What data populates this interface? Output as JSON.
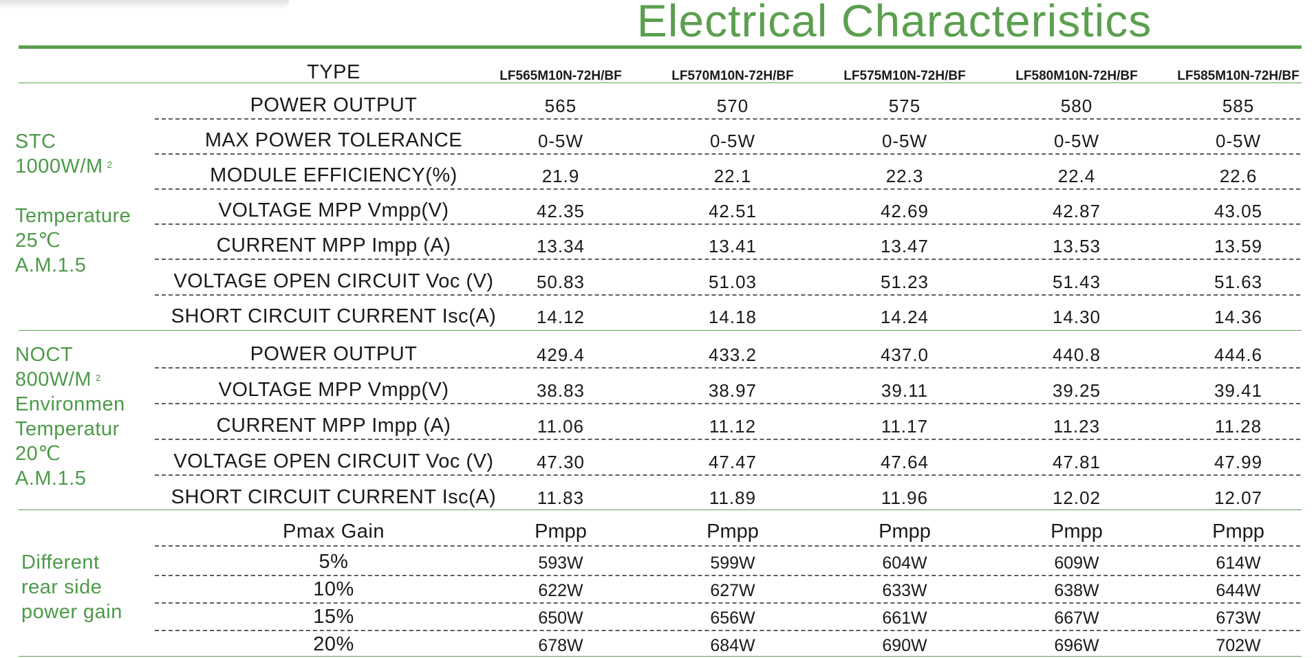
{
  "title": "Electrical Characteristics",
  "header": {
    "label": "TYPE",
    "models": [
      "LF565M10N-72H/BF",
      "LF570M10N-72H/BF",
      "LF575M10N-72H/BF",
      "LF580M10N-72H/BF",
      "LF585M10N-72H/BF"
    ]
  },
  "stc": {
    "side_lines": [
      "STC",
      "1000W/M",
      "Temperature",
      "25℃",
      "A.M.1.5"
    ],
    "sup": "2",
    "rows": [
      {
        "label": "POWER OUTPUT",
        "values": [
          "565",
          "570",
          "575",
          "580",
          "585"
        ]
      },
      {
        "label": "MAX POWER  TOLERANCE",
        "values": [
          "0-5W",
          "0-5W",
          "0-5W",
          "0-5W",
          "0-5W"
        ]
      },
      {
        "label": "MODULE EFFICIENCY(%)",
        "values": [
          "21.9",
          "22.1",
          "22.3",
          "22.4",
          "22.6"
        ]
      },
      {
        "label": "VOLTAGE MPP Vmpp(V)",
        "values": [
          "42.35",
          "42.51",
          "42.69",
          "42.87",
          "43.05"
        ]
      },
      {
        "label": "CURRENT MPP Impp (A)",
        "values": [
          "13.34",
          "13.41",
          "13.47",
          "13.53",
          "13.59"
        ]
      },
      {
        "label": "VOLTAGE OPEN CIRCUIT Voc (V)",
        "values": [
          "50.83",
          "51.03",
          "51.23",
          "51.43",
          "51.63"
        ]
      },
      {
        "label": "SHORT CIRCUIT CURRENT Isc(A)",
        "values": [
          "14.12",
          "14.18",
          "14.24",
          "14.30",
          "14.36"
        ]
      }
    ]
  },
  "noct": {
    "side_lines": [
      "NOCT",
      "800W/M",
      "Environmen",
      "Temperatur",
      "20℃",
      "A.M.1.5"
    ],
    "sup": "2",
    "rows": [
      {
        "label": "POWER OUTPUT",
        "values": [
          "429.4",
          "433.2",
          "437.0",
          "440.8",
          "444.6"
        ]
      },
      {
        "label": "VOLTAGE MPP Vmpp(V)",
        "values": [
          "38.83",
          "38.97",
          "39.11",
          "39.25",
          "39.41"
        ]
      },
      {
        "label": "CURRENT MPP Impp (A)",
        "values": [
          "11.06",
          "11.12",
          "11.17",
          "11.23",
          "11.28"
        ]
      },
      {
        "label": "VOLTAGE OPEN CIRCUIT Voc (V)",
        "values": [
          "47.30",
          "47.47",
          "47.64",
          "47.81",
          "47.99"
        ]
      },
      {
        "label": "SHORT CIRCUIT CURRENT Isc(A)",
        "values": [
          "11.83",
          "11.89",
          "11.96",
          "12.02",
          "12.07"
        ]
      }
    ]
  },
  "gain": {
    "side_lines": [
      "Different",
      "rear side",
      "power gain"
    ],
    "header": {
      "label": "Pmax Gain",
      "values": [
        "Pmpp",
        "Pmpp",
        "Pmpp",
        "Pmpp",
        "Pmpp"
      ]
    },
    "rows": [
      {
        "label": "5%",
        "values": [
          "593W",
          "599W",
          "604W",
          "609W",
          "614W"
        ]
      },
      {
        "label": "10%",
        "values": [
          "622W",
          "627W",
          "633W",
          "638W",
          "644W"
        ]
      },
      {
        "label": "15%",
        "values": [
          "650W",
          "656W",
          "661W",
          "667W",
          "673W"
        ]
      },
      {
        "label": "20%",
        "values": [
          "678W",
          "684W",
          "690W",
          "696W",
          "702W"
        ]
      }
    ]
  }
}
